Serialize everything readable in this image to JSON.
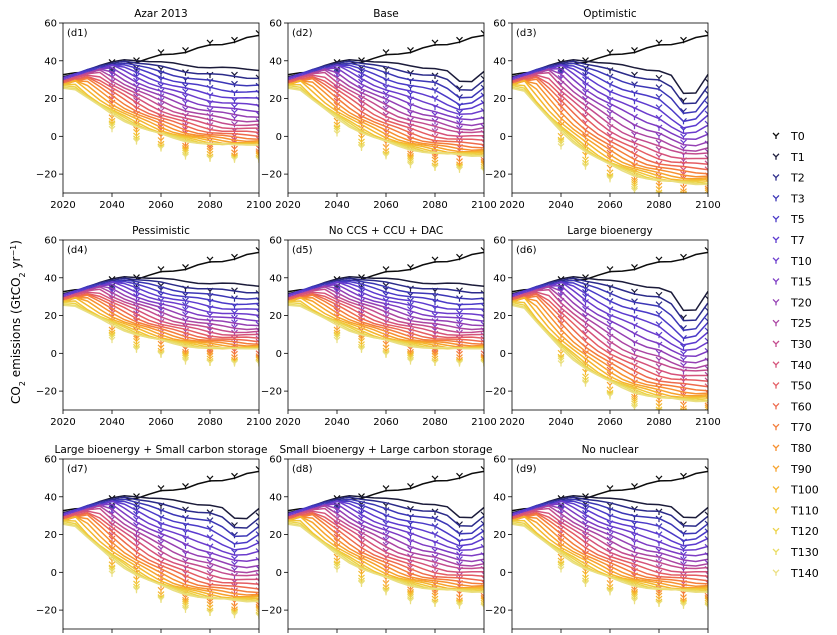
{
  "figure": {
    "ylabel_main": "CO",
    "ylabel_sub": "2",
    "ylabel_rest": " emissions (GtCO",
    "ylabel_sub2": "2",
    "ylabel_unit": " yr",
    "ylabel_sup": "−1",
    "ylabel_close": ")"
  },
  "chart_data": {
    "type": "line",
    "x_ticks": [
      2020,
      2040,
      2060,
      2080,
      2100
    ],
    "xlim": [
      2020,
      2100
    ],
    "ylim": [
      -30,
      60
    ],
    "y_ticks": [
      -20,
      0,
      20,
      40,
      60
    ],
    "y_tick_labels": [
      "−20",
      "0",
      "20",
      "40",
      "60"
    ],
    "legend": [
      "T0",
      "T1",
      "T2",
      "T3",
      "T5",
      "T7",
      "T10",
      "T15",
      "T20",
      "T25",
      "T30",
      "T40",
      "T50",
      "T60",
      "T70",
      "T80",
      "T90",
      "T100",
      "T110",
      "T120",
      "T130",
      "T140"
    ],
    "series_colors": [
      "#0d0d0d",
      "#1b1b3a",
      "#2b2b8a",
      "#3b36b6",
      "#4a3ac8",
      "#5d3bd0",
      "#6b3ccd",
      "#7d3bc4",
      "#9540b4",
      "#ab45a3",
      "#c34c8e",
      "#d5527a",
      "#e45c63",
      "#ee6a4d",
      "#f47d3a",
      "#f79030",
      "#f7a22c",
      "#f5b52d",
      "#f1c537",
      "#ecd248",
      "#e9dc63",
      "#eadf82"
    ],
    "panels": [
      {
        "id": "(d1)",
        "title": "Azar 2013",
        "end_min": -5,
        "dip": false,
        "floor": -6,
        "ceiling_end": 53
      },
      {
        "id": "(d2)",
        "title": "Base",
        "end_min": -10,
        "dip": true,
        "floor": -12,
        "ceiling_end": 53
      },
      {
        "id": "(d3)",
        "title": "Optimistic",
        "end_min": -25,
        "dip": true,
        "floor": -27,
        "ceiling_end": 53
      },
      {
        "id": "(d4)",
        "title": "Pessimistic",
        "end_min": 2,
        "dip": false,
        "floor": 1,
        "ceiling_end": 53
      },
      {
        "id": "(d5)",
        "title": "No CCS + CCU + DAC",
        "end_min": 2,
        "dip": false,
        "floor": 1,
        "ceiling_end": 53
      },
      {
        "id": "(d6)",
        "title": "Large bioenergy",
        "end_min": -25,
        "dip": true,
        "floor": -27,
        "ceiling_end": 53
      },
      {
        "id": "(d7)",
        "title": "Large bioenergy + Small carbon storage",
        "end_min": -15,
        "dip": true,
        "floor": -18,
        "ceiling_end": 53
      },
      {
        "id": "(d8)",
        "title": "Small bioenergy + Large carbon storage",
        "end_min": -10,
        "dip": true,
        "floor": -12,
        "ceiling_end": 53
      },
      {
        "id": "(d9)",
        "title": "No nuclear",
        "end_min": -10,
        "dip": true,
        "floor": -12,
        "ceiling_end": 53
      }
    ]
  }
}
